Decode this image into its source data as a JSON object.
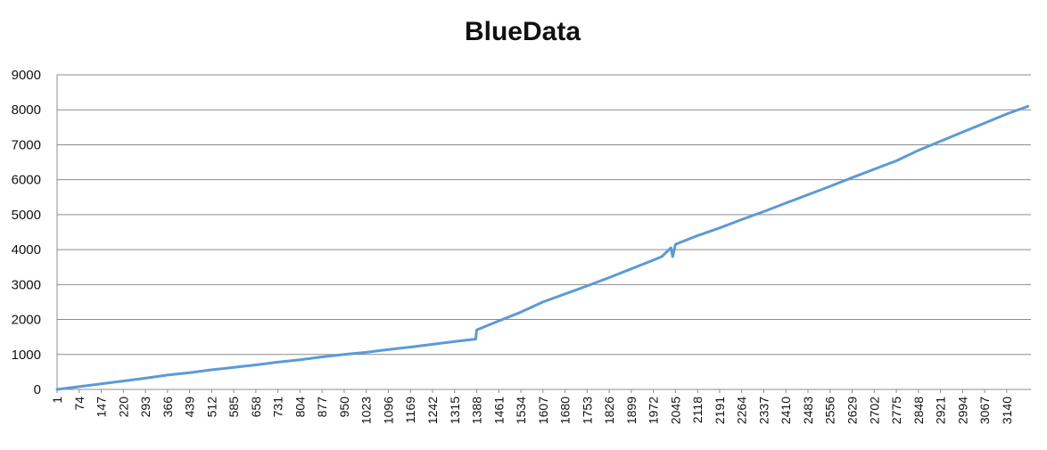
{
  "chart_data": {
    "type": "line",
    "title": "BlueData",
    "xlabel": "",
    "ylabel": "",
    "ylim": [
      0,
      9000
    ],
    "xlim": [
      1,
      3220
    ],
    "grid": true,
    "legend": "none",
    "y_ticks": [
      0,
      1000,
      2000,
      3000,
      4000,
      5000,
      6000,
      7000,
      8000,
      9000
    ],
    "x_tick_labels": [
      "1",
      "74",
      "147",
      "220",
      "293",
      "366",
      "439",
      "512",
      "585",
      "658",
      "731",
      "804",
      "877",
      "950",
      "1023",
      "1096",
      "1169",
      "1242",
      "1315",
      "1388",
      "1461",
      "1534",
      "1607",
      "1680",
      "1753",
      "1826",
      "1899",
      "1972",
      "2045",
      "2118",
      "2191",
      "2264",
      "2337",
      "2410",
      "2483",
      "2556",
      "2629",
      "2702",
      "2775",
      "2848",
      "2921",
      "2994",
      "3067",
      "3140"
    ],
    "series": [
      {
        "color": "#5b9bd5",
        "x": [
          1,
          74,
          147,
          220,
          293,
          366,
          439,
          512,
          585,
          658,
          731,
          804,
          877,
          950,
          1023,
          1096,
          1169,
          1242,
          1315,
          1385,
          1388,
          1461,
          1534,
          1607,
          1680,
          1753,
          1826,
          1899,
          1972,
          2000,
          2030,
          2036,
          2045,
          2118,
          2191,
          2264,
          2337,
          2410,
          2483,
          2556,
          2629,
          2702,
          2775,
          2848,
          2921,
          2994,
          3067,
          3140,
          3210
        ],
        "y": [
          0,
          80,
          160,
          240,
          320,
          410,
          480,
          560,
          630,
          700,
          780,
          850,
          930,
          1000,
          1060,
          1140,
          1210,
          1290,
          1370,
          1440,
          1700,
          1960,
          2210,
          2500,
          2730,
          2960,
          3200,
          3450,
          3700,
          3800,
          4050,
          3800,
          4150,
          4400,
          4620,
          4860,
          5090,
          5330,
          5570,
          5810,
          6060,
          6300,
          6540,
          6840,
          7100,
          7360,
          7620,
          7880,
          8100
        ]
      }
    ]
  }
}
